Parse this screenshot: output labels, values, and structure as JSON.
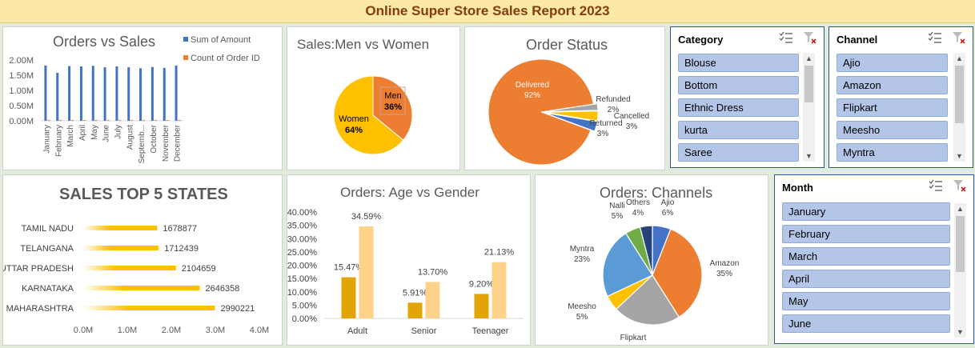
{
  "report_title": "Online Super Store Sales Report 2023",
  "orders_vs_sales": {
    "title": "Orders vs Sales",
    "legend": [
      {
        "label": "Sum of Amount",
        "color": "#4472c4"
      },
      {
        "label": "Count of Order ID",
        "color": "#ed7d31"
      }
    ],
    "y_ticks": [
      "0.00M",
      "0.50M",
      "1.00M",
      "1.50M",
      "2.00M"
    ],
    "chart_data": {
      "type": "bar",
      "categories": [
        "January",
        "February",
        "March",
        "April",
        "May",
        "June",
        "July",
        "August",
        "September",
        "October",
        "November",
        "December"
      ],
      "category_labels": [
        "January",
        "February",
        "March",
        "April",
        "May",
        "June",
        "July",
        "August",
        "Septemb...",
        "October",
        "November",
        "December"
      ],
      "series": [
        {
          "name": "Sum of Amount",
          "values": [
            1.82,
            1.58,
            1.8,
            1.79,
            1.81,
            1.76,
            1.79,
            1.76,
            1.73,
            1.77,
            1.74,
            1.82
          ]
        },
        {
          "name": "Count of Order ID",
          "values": [
            0.0027,
            0.0024,
            0.0027,
            0.0027,
            0.0027,
            0.0026,
            0.0027,
            0.0026,
            0.0026,
            0.0026,
            0.0026,
            0.0027
          ]
        }
      ],
      "ylim": [
        0,
        2.0
      ]
    }
  },
  "sales_gender": {
    "title": "Sales:Men vs Women",
    "chart_data": {
      "type": "pie",
      "slices": [
        {
          "label": "Men",
          "value": 36,
          "pct": "36%",
          "color": "#ed7d31"
        },
        {
          "label": "Women",
          "value": 64,
          "pct": "64%",
          "color": "#ffc000"
        }
      ]
    }
  },
  "order_status": {
    "title": "Order Status",
    "chart_data": {
      "type": "pie",
      "slices": [
        {
          "label": "Delivered",
          "value": 92,
          "pct": "92%",
          "color": "#ed7d31"
        },
        {
          "label": "Refunded",
          "value": 2,
          "pct": "2%",
          "color": "#a5a5a5"
        },
        {
          "label": "Cancelled",
          "value": 3,
          "pct": "3%",
          "color": "#ffc000"
        },
        {
          "label": "Returned",
          "value": 3,
          "pct": "3%",
          "color": "#4472c4"
        }
      ]
    }
  },
  "category_slicer": {
    "header": "Category",
    "items": [
      "Blouse",
      "Bottom",
      "Ethnic Dress",
      "kurta",
      "Saree"
    ]
  },
  "channel_slicer": {
    "header": "Channel",
    "items": [
      "Ajio",
      "Amazon",
      "Flipkart",
      "Meesho",
      "Myntra"
    ]
  },
  "month_slicer": {
    "header": "Month",
    "items": [
      "January",
      "February",
      "March",
      "April",
      "May",
      "June"
    ]
  },
  "top_states": {
    "title": "SALES TOP 5 STATES",
    "x_ticks": [
      "0.0M",
      "1.0M",
      "2.0M",
      "3.0M",
      "4.0M"
    ],
    "chart_data": {
      "type": "bar",
      "orientation": "horizontal",
      "categories": [
        "TAMIL NADU",
        "TELANGANA",
        "UTTAR PRADESH",
        "KARNATAKA",
        "MAHARASHTRA"
      ],
      "values": [
        1678877,
        1712439,
        2104659,
        2646358,
        2990221
      ],
      "value_labels": [
        "1678877",
        "1712439",
        "2104659",
        "2646358",
        "2990221"
      ],
      "xlim": [
        0,
        4000000
      ],
      "color": "#ffc000"
    }
  },
  "age_gender": {
    "title": "Orders: Age vs Gender",
    "y_ticks": [
      "0.00%",
      "5.00%",
      "10.00%",
      "15.00%",
      "20.00%",
      "25.00%",
      "30.00%",
      "35.00%",
      "40.00%"
    ],
    "chart_data": {
      "type": "bar",
      "categories": [
        "Adult",
        "Senior",
        "Teenager"
      ],
      "series": [
        {
          "values": [
            15.47,
            5.91,
            9.2
          ],
          "labels": [
            "15.47%",
            "5.91%",
            "9.20%"
          ],
          "color": "#e2a507"
        },
        {
          "values": [
            34.59,
            13.7,
            21.13
          ],
          "labels": [
            "34.59%",
            "13.70%",
            "21.13%"
          ],
          "color": "#ffd28a"
        }
      ],
      "ylim": [
        0,
        40
      ]
    }
  },
  "channels": {
    "title": "Orders: Channels",
    "chart_data": {
      "type": "pie",
      "slices": [
        {
          "label": "Ajio",
          "value": 6,
          "pct": "6%",
          "color": "#4472c4"
        },
        {
          "label": "Amazon",
          "value": 35,
          "pct": "35%",
          "color": "#ed7d31"
        },
        {
          "label": "Flipkart",
          "value": 22,
          "pct": "22%",
          "color": "#a5a5a5"
        },
        {
          "label": "Meesho",
          "value": 5,
          "pct": "5%",
          "color": "#ffc000"
        },
        {
          "label": "Myntra",
          "value": 23,
          "pct": "23%",
          "color": "#5b9bd5"
        },
        {
          "label": "Nalli",
          "value": 5,
          "pct": "5%",
          "color": "#70ad47"
        },
        {
          "label": "Others",
          "value": 4,
          "pct": "4%",
          "color": "#264478"
        }
      ]
    }
  }
}
